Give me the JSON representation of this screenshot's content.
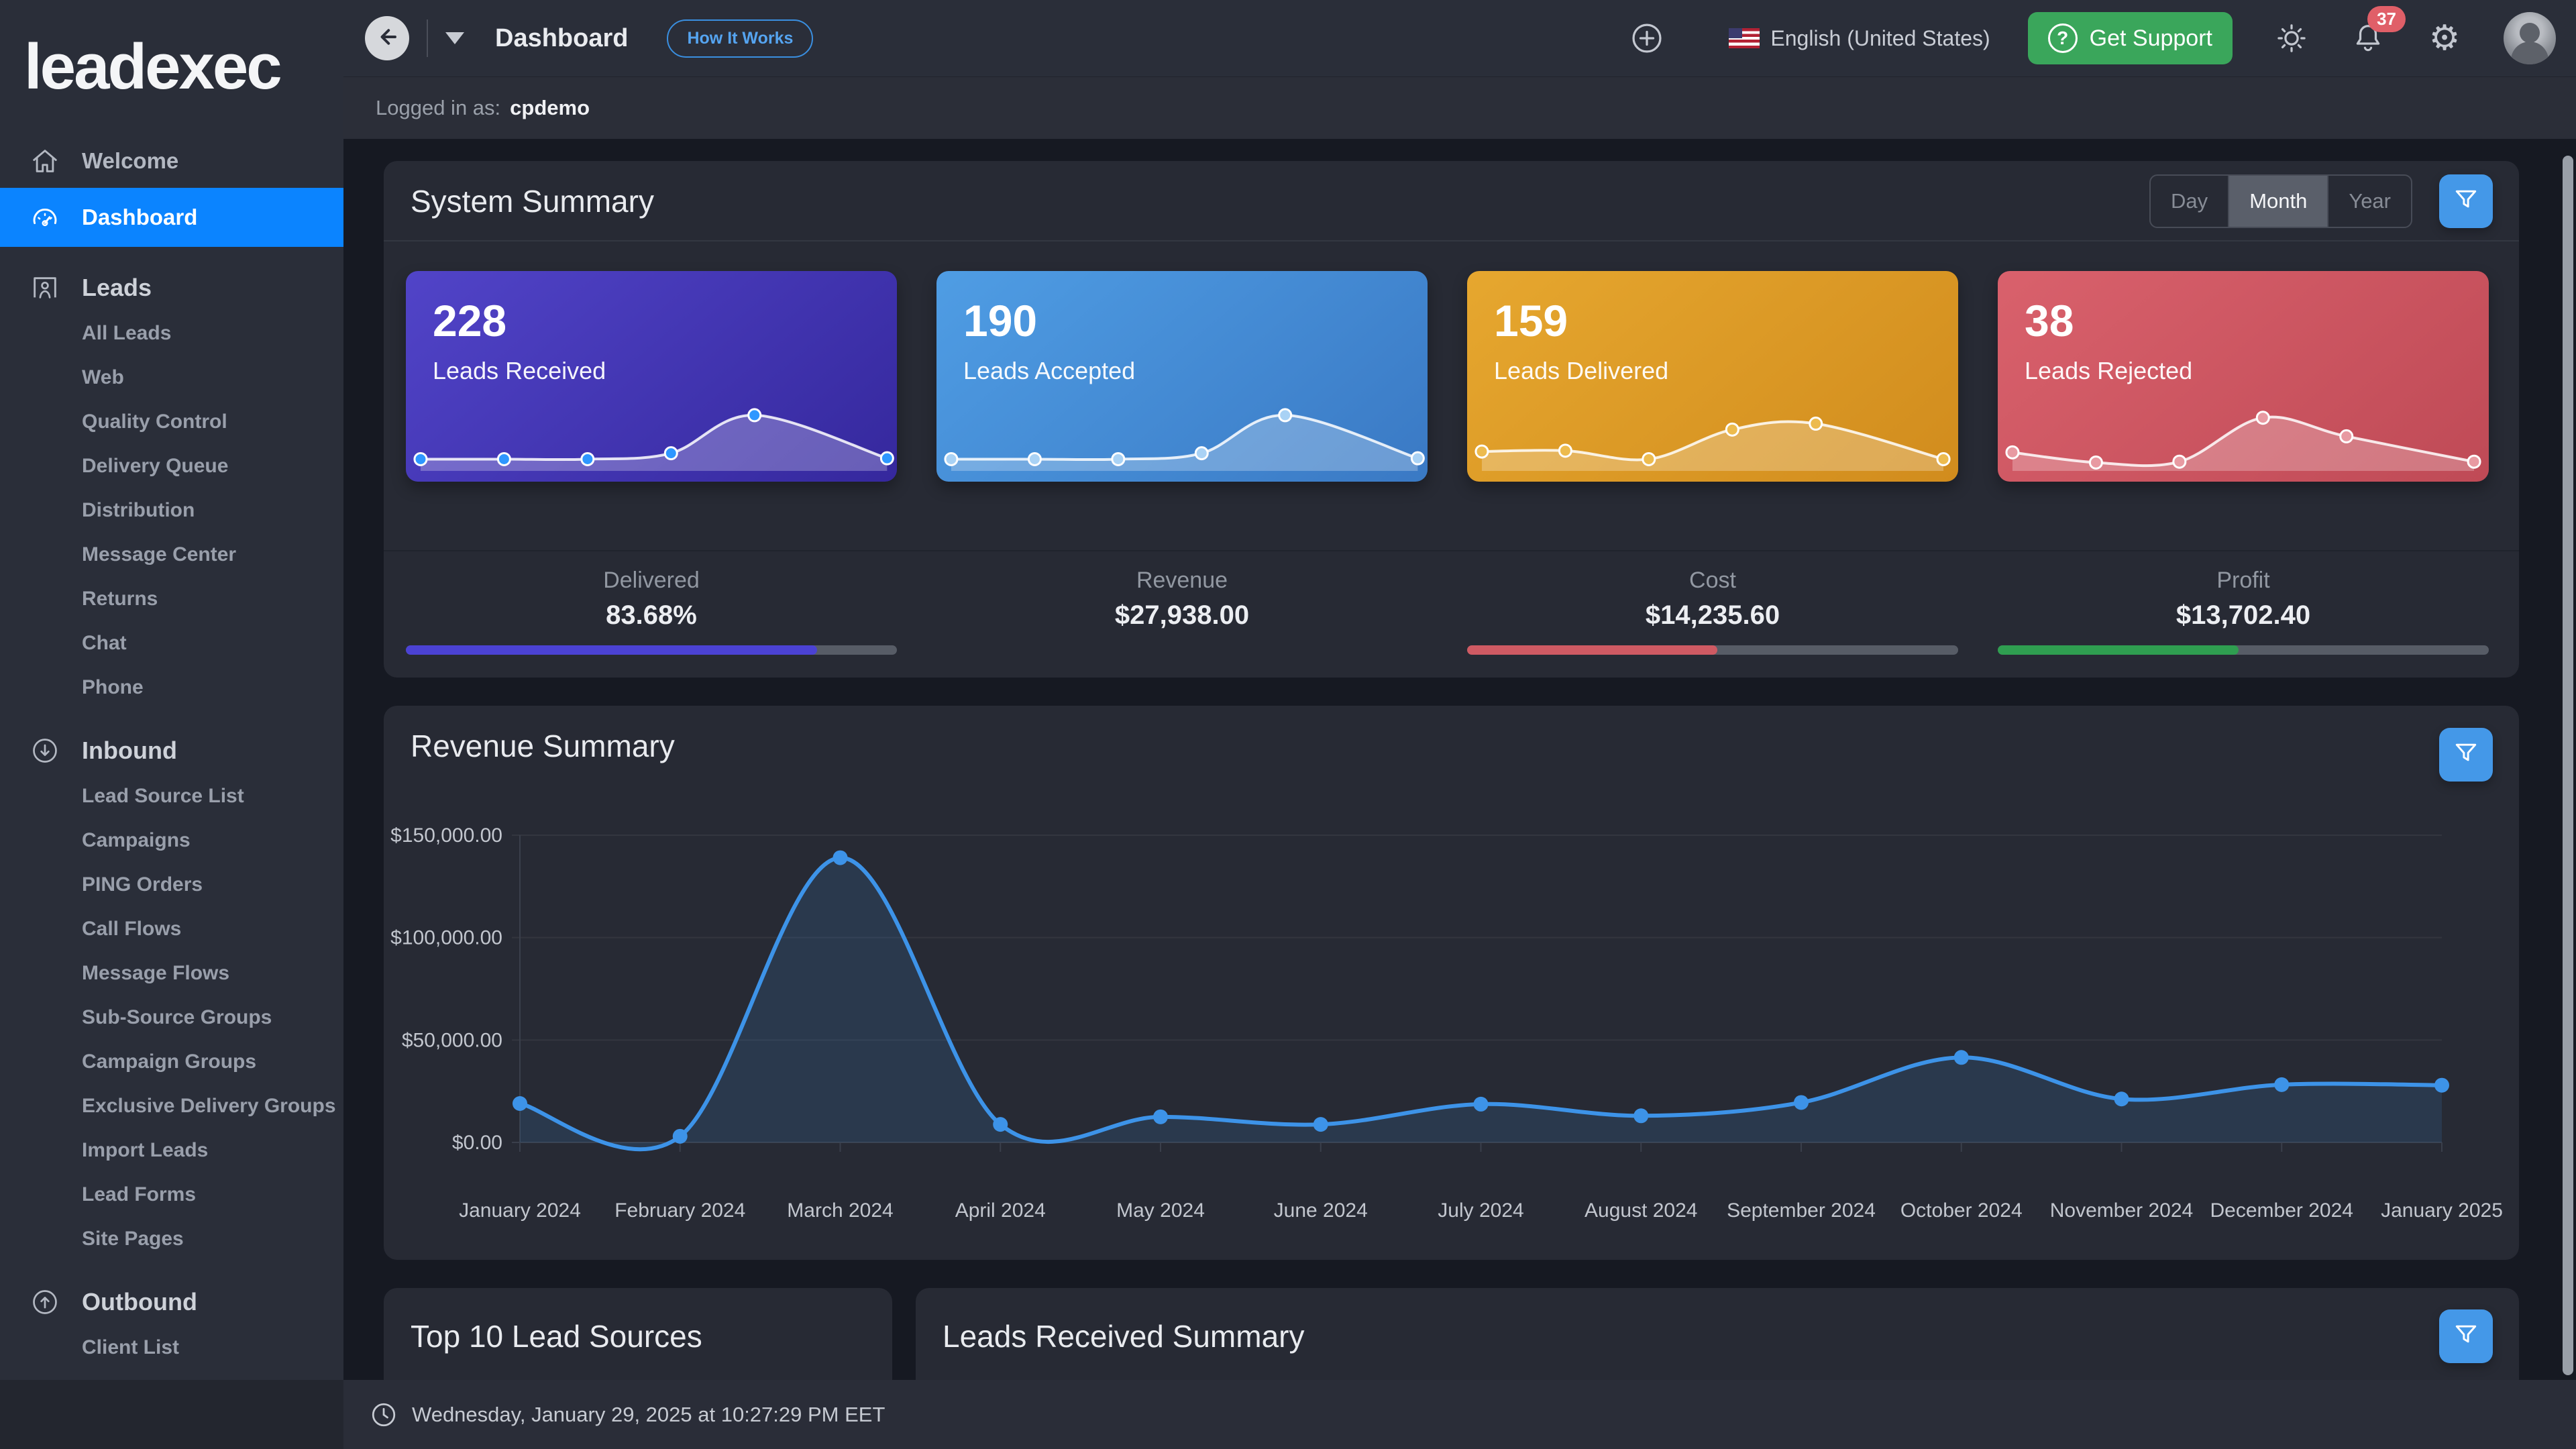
{
  "brand": {
    "logo_text": "leadexec"
  },
  "topbar": {
    "page_title": "Dashboard",
    "how_it_works_badge": "How It Works",
    "language": "English (United States)",
    "get_support_label": "Get Support",
    "notification_count": "37"
  },
  "subheader": {
    "logged_in_as_label": "Logged in as:",
    "username": "cpdemo"
  },
  "sidebar": {
    "items": [
      {
        "label": "Welcome",
        "icon": "home",
        "active": false
      },
      {
        "label": "Dashboard",
        "icon": "gauge",
        "active": true
      }
    ],
    "sections": [
      {
        "label": "Leads",
        "icon": "leads",
        "items": [
          "All Leads",
          "Web",
          "Quality Control",
          "Delivery Queue",
          "Distribution",
          "Message Center",
          "Returns",
          "Chat",
          "Phone"
        ]
      },
      {
        "label": "Inbound",
        "icon": "inbound",
        "items": [
          "Lead Source List",
          "Campaigns",
          "PING Orders",
          "Call Flows",
          "Message Flows",
          "Sub-Source Groups",
          "Campaign Groups",
          "Exclusive Delivery Groups",
          "Import Leads",
          "Lead Forms",
          "Site Pages"
        ]
      },
      {
        "label": "Outbound",
        "icon": "outbound",
        "items": [
          "Client List"
        ]
      }
    ]
  },
  "system_summary": {
    "title": "System Summary",
    "range_toggle": {
      "options": [
        "Day",
        "Month",
        "Year"
      ],
      "selected": "Month"
    },
    "stats": [
      {
        "value": "228",
        "label": "Leads Received",
        "gradient": [
          "#5144c8",
          "#35289d"
        ],
        "dot_color": "#2e97ff",
        "spark": [
          [
            3,
            6
          ],
          [
            20,
            6
          ],
          [
            37,
            6
          ],
          [
            54,
            13
          ],
          [
            71,
            58
          ],
          [
            98,
            7
          ]
        ]
      },
      {
        "value": "190",
        "label": "Leads Accepted",
        "gradient": [
          "#4f9de4",
          "#3a79c4"
        ],
        "dot_color": "#a9d2f5",
        "spark": [
          [
            3,
            6
          ],
          [
            20,
            6
          ],
          [
            37,
            6
          ],
          [
            54,
            13
          ],
          [
            71,
            58
          ],
          [
            98,
            7
          ]
        ]
      },
      {
        "value": "159",
        "label": "Leads Delivered",
        "gradient": [
          "#e6a72f",
          "#d18c1d"
        ],
        "dot_color": "#edbb4e",
        "spark": [
          [
            3,
            15
          ],
          [
            20,
            16
          ],
          [
            37,
            6
          ],
          [
            54,
            41
          ],
          [
            71,
            48
          ],
          [
            97,
            6
          ]
        ]
      },
      {
        "value": "38",
        "label": "Leads Rejected",
        "gradient": [
          "#d9616c",
          "#bf4a56"
        ],
        "dot_color": "#e89aa2",
        "spark": [
          [
            3,
            14
          ],
          [
            20,
            2
          ],
          [
            37,
            3
          ],
          [
            54,
            55
          ],
          [
            71,
            33
          ],
          [
            97,
            3
          ]
        ]
      }
    ],
    "metrics": [
      {
        "label": "Delivered",
        "value": "83.68%",
        "bar_percent": 83.68,
        "bar_color": "#4b42d4"
      },
      {
        "label": "Revenue",
        "value": "$27,938.00",
        "bar_percent": null,
        "bar_color": null
      },
      {
        "label": "Cost",
        "value": "$14,235.60",
        "bar_percent": 50.95,
        "bar_color": "#cf5a63"
      },
      {
        "label": "Profit",
        "value": "$13,702.40",
        "bar_percent": 49.05,
        "bar_color": "#2f9e50"
      }
    ]
  },
  "revenue_summary": {
    "title": "Revenue Summary",
    "chart_data": {
      "type": "area",
      "x": [
        "January 2024",
        "February 2024",
        "March 2024",
        "April 2024",
        "May 2024",
        "June 2024",
        "July 2024",
        "August 2024",
        "September 2024",
        "October 2024",
        "November 2024",
        "December 2024",
        "January 2025"
      ],
      "series": [
        {
          "name": "Revenue",
          "values": [
            19000,
            3000,
            139000,
            8800,
            12500,
            8800,
            18700,
            13000,
            19500,
            41500,
            21200,
            28200,
            27938
          ]
        }
      ],
      "ylim": [
        0,
        150000
      ],
      "y_ticks": [
        {
          "value": 0,
          "label": "$0.00"
        },
        {
          "value": 50000,
          "label": "$50,000.00"
        },
        {
          "value": 100000,
          "label": "$100,000.00"
        },
        {
          "value": 150000,
          "label": "$150,000.00"
        }
      ],
      "grid": true,
      "legend": false,
      "line_color": "#3d93e8",
      "fill_color": "rgba(61,147,232,0.14)"
    }
  },
  "bottom_panels": {
    "left_title": "Top 10 Lead Sources",
    "right_title": "Leads Received Summary"
  },
  "footer": {
    "datetime": "Wednesday, January 29, 2025 at 10:27:29 PM EET"
  }
}
